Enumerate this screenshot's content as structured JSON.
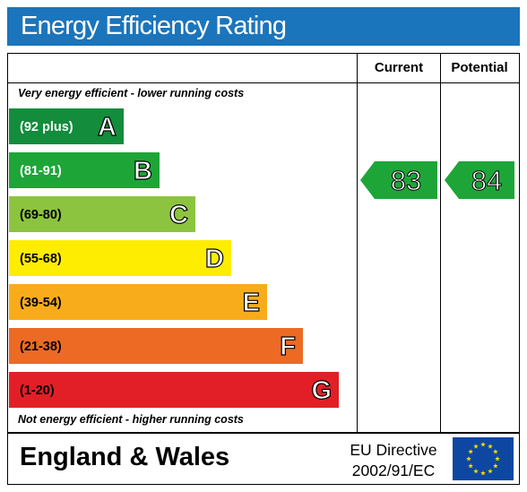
{
  "title": "Energy Efficiency Rating",
  "columns": {
    "current": "Current",
    "potential": "Potential"
  },
  "top_note": "Very energy efficient - lower running costs",
  "bottom_note": "Not energy efficient - higher running costs",
  "footer": {
    "region": "England & Wales",
    "directive_line1": "EU Directive",
    "directive_line2": "2002/91/EC"
  },
  "chart_data": {
    "type": "bar",
    "title": "Energy Efficiency Rating",
    "categories": [
      "A",
      "B",
      "C",
      "D",
      "E",
      "F",
      "G"
    ],
    "ranges": [
      "(92 plus)",
      "(81-91)",
      "(69-80)",
      "(55-68)",
      "(39-54)",
      "(21-38)",
      "(1-20)"
    ],
    "colors": [
      "#138c3c",
      "#1ea538",
      "#8cc43f",
      "#ffed00",
      "#f9ac1b",
      "#ec6a24",
      "#e21f26"
    ],
    "current": {
      "value": 83,
      "band": "B",
      "color": "#1ea538"
    },
    "potential": {
      "value": 84,
      "band": "B",
      "color": "#1ea538"
    }
  },
  "icons": {
    "eu_flag": "eu-flag-icon"
  }
}
